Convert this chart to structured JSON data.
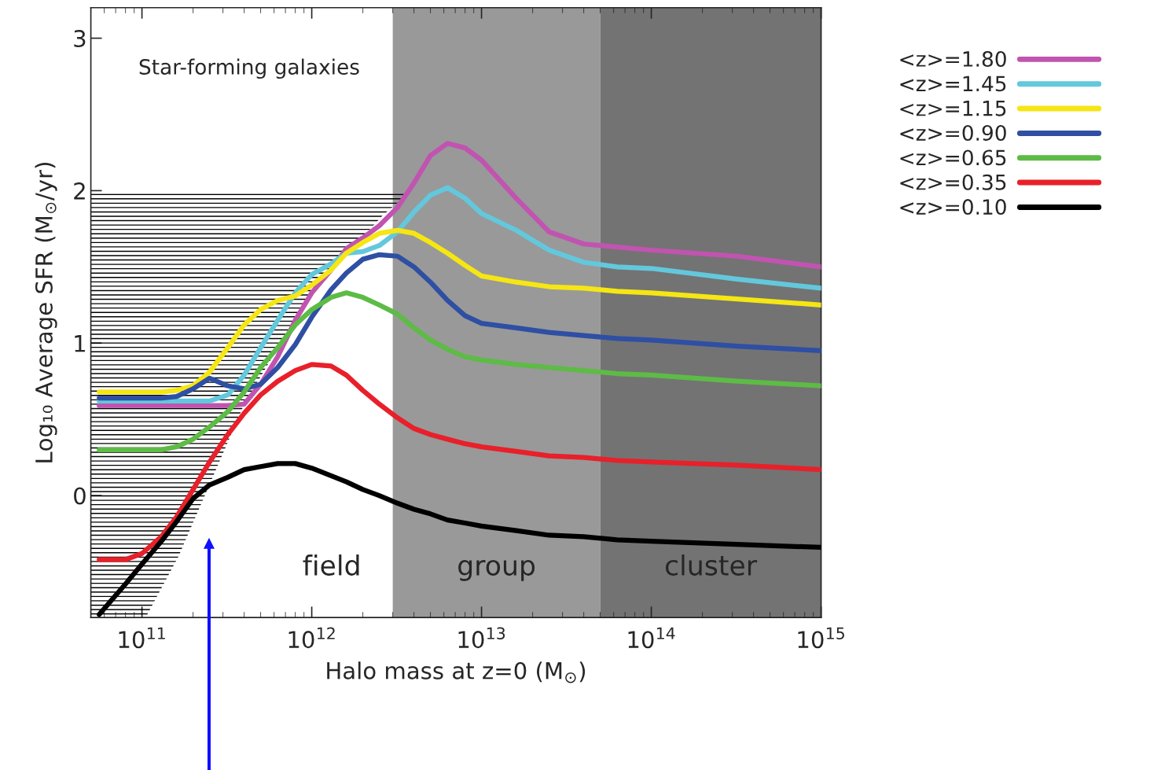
{
  "chart_data": {
    "type": "line",
    "xlabel": "Halo mass at z=0 (M$_{⊙}$)",
    "ylabel": "Log₁₀ Average SFR (M$_{⊙}$/yr)",
    "log": "x",
    "xlim": [
      50000000000.0,
      1000000000000000.0
    ],
    "ylim": [
      -0.8,
      3.2
    ],
    "xticks": [
      {
        "value": 100000000000.0,
        "label": "10$^{11}$"
      },
      {
        "value": 1000000000000.0,
        "label": "10$^{12}$"
      },
      {
        "value": 10000000000000.0,
        "label": "10$^{13}$"
      },
      {
        "value": 100000000000000.0,
        "label": "10$^{14}$"
      },
      {
        "value": 1000000000000000.0,
        "label": "10$^{15}$"
      }
    ],
    "yticks": [
      0,
      1,
      2,
      3
    ],
    "grid": false,
    "legend": "right",
    "annotations": [
      "Star-forming galaxies",
      "field"
    ],
    "bands": [
      {
        "axis": "x",
        "from": 3000000000000.0,
        "to": 50000000000000.0,
        "label": "group",
        "color": "#999999"
      },
      {
        "axis": "x",
        "from": 50000000000000.0,
        "to": 1000000000000000.0,
        "label": "cluster",
        "color": "#737373"
      }
    ],
    "x": [
      56000000000.0,
      80000000000.0,
      100000000000.0,
      130000000000.0,
      160000000000.0,
      200000000000.0,
      250000000000.0,
      320000000000.0,
      400000000000.0,
      500000000000.0,
      630000000000.0,
      800000000000.0,
      1000000000000.0,
      1300000000000.0,
      1600000000000.0,
      2000000000000.0,
      2500000000000.0,
      3200000000000.0,
      4000000000000.0,
      5000000000000.0,
      6300000000000.0,
      8000000000000.0,
      10000000000000.0,
      16000000000000.0,
      25000000000000.0,
      40000000000000.0,
      63000000000000.0,
      100000000000000.0,
      320000000000000.0,
      1000000000000000.0
    ],
    "series": [
      {
        "name": "<z>=1.80",
        "color": "#c154b0",
        "values": [
          0.59,
          0.59,
          0.59,
          0.59,
          0.59,
          0.59,
          0.59,
          0.59,
          0.6,
          0.73,
          0.91,
          1.15,
          1.33,
          1.48,
          1.62,
          1.69,
          1.77,
          1.89,
          2.05,
          2.23,
          2.31,
          2.28,
          2.2,
          1.95,
          1.73,
          1.65,
          1.63,
          1.61,
          1.57,
          1.5
        ]
      },
      {
        "name": "<z>=1.45",
        "color": "#63c8dc",
        "values": [
          0.62,
          0.62,
          0.62,
          0.62,
          0.62,
          0.62,
          0.62,
          0.66,
          0.79,
          0.97,
          1.15,
          1.33,
          1.45,
          1.52,
          1.59,
          1.6,
          1.64,
          1.73,
          1.86,
          1.97,
          2.02,
          1.95,
          1.85,
          1.74,
          1.61,
          1.53,
          1.5,
          1.49,
          1.42,
          1.36
        ]
      },
      {
        "name": "<z>=1.15",
        "color": "#f5e614",
        "values": [
          0.68,
          0.68,
          0.68,
          0.68,
          0.69,
          0.72,
          0.81,
          0.97,
          1.12,
          1.22,
          1.28,
          1.31,
          1.38,
          1.48,
          1.59,
          1.66,
          1.72,
          1.74,
          1.72,
          1.66,
          1.59,
          1.51,
          1.44,
          1.4,
          1.37,
          1.36,
          1.34,
          1.33,
          1.29,
          1.25
        ]
      },
      {
        "name": "<z>=0.90",
        "color": "#2e4fa3",
        "values": [
          0.64,
          0.64,
          0.64,
          0.64,
          0.65,
          0.7,
          0.77,
          0.72,
          0.7,
          0.73,
          0.84,
          0.99,
          1.17,
          1.35,
          1.46,
          1.55,
          1.58,
          1.57,
          1.5,
          1.4,
          1.28,
          1.18,
          1.13,
          1.1,
          1.07,
          1.05,
          1.03,
          1.02,
          0.98,
          0.95
        ]
      },
      {
        "name": "<z>=0.65",
        "color": "#5dbb46",
        "values": [
          0.3,
          0.3,
          0.3,
          0.3,
          0.32,
          0.37,
          0.45,
          0.55,
          0.68,
          0.84,
          0.97,
          1.12,
          1.22,
          1.3,
          1.33,
          1.3,
          1.25,
          1.19,
          1.1,
          1.02,
          0.96,
          0.91,
          0.89,
          0.86,
          0.84,
          0.82,
          0.8,
          0.79,
          0.75,
          0.72
        ]
      },
      {
        "name": "<z>=0.35",
        "color": "#e8202a",
        "values": [
          -0.42,
          -0.42,
          -0.38,
          -0.27,
          -0.14,
          0.04,
          0.22,
          0.4,
          0.54,
          0.66,
          0.75,
          0.82,
          0.86,
          0.85,
          0.79,
          0.69,
          0.6,
          0.51,
          0.44,
          0.4,
          0.37,
          0.34,
          0.32,
          0.29,
          0.26,
          0.25,
          0.23,
          0.22,
          0.2,
          0.17
        ]
      },
      {
        "name": "<z>=0.10",
        "color": "#000000",
        "values": [
          -0.78,
          -0.58,
          -0.45,
          -0.3,
          -0.17,
          -0.02,
          0.07,
          0.12,
          0.17,
          0.19,
          0.21,
          0.21,
          0.18,
          0.13,
          0.09,
          0.04,
          0.0,
          -0.05,
          -0.09,
          -0.12,
          -0.16,
          -0.18,
          -0.2,
          -0.23,
          -0.26,
          -0.27,
          -0.29,
          -0.3,
          -0.32,
          -0.34
        ]
      }
    ]
  }
}
